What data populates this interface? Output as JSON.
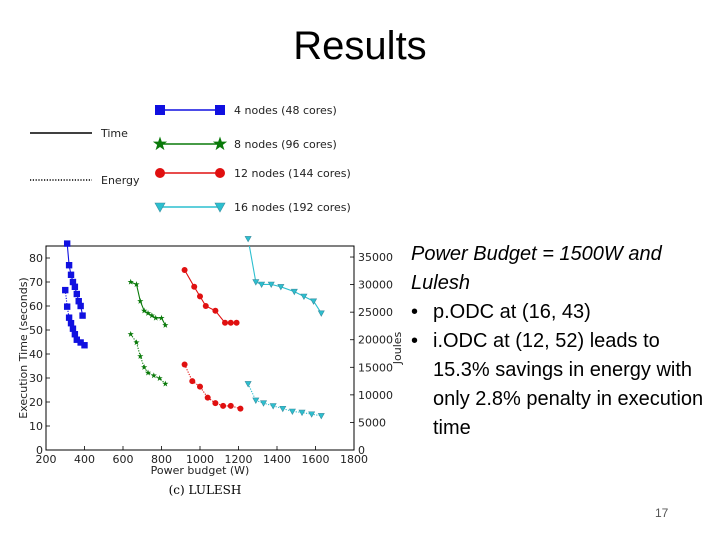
{
  "slide": {
    "title": "Results",
    "page_number": "17",
    "notes": {
      "heading_line1": "Power Budget = 1500W and",
      "heading_line2": "Lulesh",
      "bullets": [
        {
          "text": "p.ODC at (16, 43)"
        },
        {
          "text": "i.ODC at (12, 52) leads to 15.3% savings in energy with only 2.8% penalty in execution time"
        }
      ]
    }
  },
  "legend": {
    "styles": [
      {
        "label": "Time",
        "linestyle": "solid"
      },
      {
        "label": "Energy",
        "linestyle": "dotted"
      }
    ],
    "series": [
      {
        "label": "4 nodes (48 cores)",
        "color": "#1010e0",
        "marker": "square"
      },
      {
        "label": "8 nodes (96 cores)",
        "color": "#0a7a0a",
        "marker": "star"
      },
      {
        "label": "12 nodes (144 cores)",
        "color": "#e01010",
        "marker": "circle"
      },
      {
        "label": "16 nodes (192 cores)",
        "color": "#2cbfcf",
        "marker": "triangle"
      }
    ]
  },
  "chart_data": {
    "type": "line",
    "caption": "(c) LULESH",
    "xlabel": "Power budget (W)",
    "ylabel": "Execution Time (seconds)",
    "y2label": "Joules",
    "xlim": [
      200,
      1800
    ],
    "ylim": [
      0,
      85
    ],
    "y2lim": [
      0,
      37000
    ],
    "xticks": [
      "200",
      "400",
      "600",
      "800",
      "1000",
      "1200",
      "1400",
      "1600",
      "1800"
    ],
    "yticks": [
      "0",
      "10",
      "20",
      "30",
      "40",
      "50",
      "60",
      "70",
      "80"
    ],
    "y2ticks": [
      "0",
      "5000",
      "10000",
      "15000",
      "20000",
      "25000",
      "30000",
      "35000"
    ],
    "series": [
      {
        "name": "4 nodes (48 cores)",
        "metric": "time",
        "points": [
          [
            310,
            86
          ],
          [
            320,
            77
          ],
          [
            330,
            73
          ],
          [
            340,
            70
          ],
          [
            350,
            68
          ],
          [
            360,
            65
          ],
          [
            370,
            62
          ],
          [
            380,
            60
          ],
          [
            390,
            56
          ]
        ]
      },
      {
        "name": "4 nodes (48 cores)",
        "metric": "energy",
        "points": [
          [
            300,
            29000
          ],
          [
            310,
            26000
          ],
          [
            320,
            24000
          ],
          [
            330,
            23000
          ],
          [
            340,
            22000
          ],
          [
            350,
            21000
          ],
          [
            360,
            20000
          ],
          [
            380,
            19500
          ],
          [
            400,
            19000
          ]
        ]
      },
      {
        "name": "8 nodes (96 cores)",
        "metric": "time",
        "points": [
          [
            640,
            70
          ],
          [
            670,
            69
          ],
          [
            690,
            62
          ],
          [
            710,
            58
          ],
          [
            730,
            57
          ],
          [
            750,
            56
          ],
          [
            770,
            55
          ],
          [
            800,
            55
          ],
          [
            820,
            52
          ]
        ]
      },
      {
        "name": "8 nodes (96 cores)",
        "metric": "energy",
        "points": [
          [
            640,
            21000
          ],
          [
            670,
            19500
          ],
          [
            690,
            17000
          ],
          [
            710,
            15000
          ],
          [
            730,
            14000
          ],
          [
            760,
            13500
          ],
          [
            790,
            13000
          ],
          [
            820,
            12000
          ]
        ]
      },
      {
        "name": "12 nodes (144 cores)",
        "metric": "time",
        "points": [
          [
            920,
            75
          ],
          [
            970,
            68
          ],
          [
            1000,
            64
          ],
          [
            1030,
            60
          ],
          [
            1080,
            58
          ],
          [
            1130,
            53
          ],
          [
            1160,
            53
          ],
          [
            1190,
            53
          ]
        ]
      },
      {
        "name": "12 nodes (144 cores)",
        "metric": "energy",
        "points": [
          [
            920,
            15500
          ],
          [
            960,
            12500
          ],
          [
            1000,
            11500
          ],
          [
            1040,
            9500
          ],
          [
            1080,
            8500
          ],
          [
            1120,
            8000
          ],
          [
            1160,
            8000
          ],
          [
            1210,
            7500
          ]
        ]
      },
      {
        "name": "16 nodes (192 cores)",
        "metric": "time",
        "points": [
          [
            1250,
            88
          ],
          [
            1290,
            70
          ],
          [
            1320,
            69
          ],
          [
            1370,
            69
          ],
          [
            1420,
            68
          ],
          [
            1490,
            66
          ],
          [
            1540,
            64
          ],
          [
            1590,
            62
          ],
          [
            1630,
            57
          ]
        ]
      },
      {
        "name": "16 nodes (192 cores)",
        "metric": "energy",
        "points": [
          [
            1250,
            12000
          ],
          [
            1290,
            9000
          ],
          [
            1330,
            8500
          ],
          [
            1380,
            8000
          ],
          [
            1430,
            7500
          ],
          [
            1480,
            7000
          ],
          [
            1530,
            6800
          ],
          [
            1580,
            6500
          ],
          [
            1630,
            6200
          ]
        ]
      }
    ]
  }
}
